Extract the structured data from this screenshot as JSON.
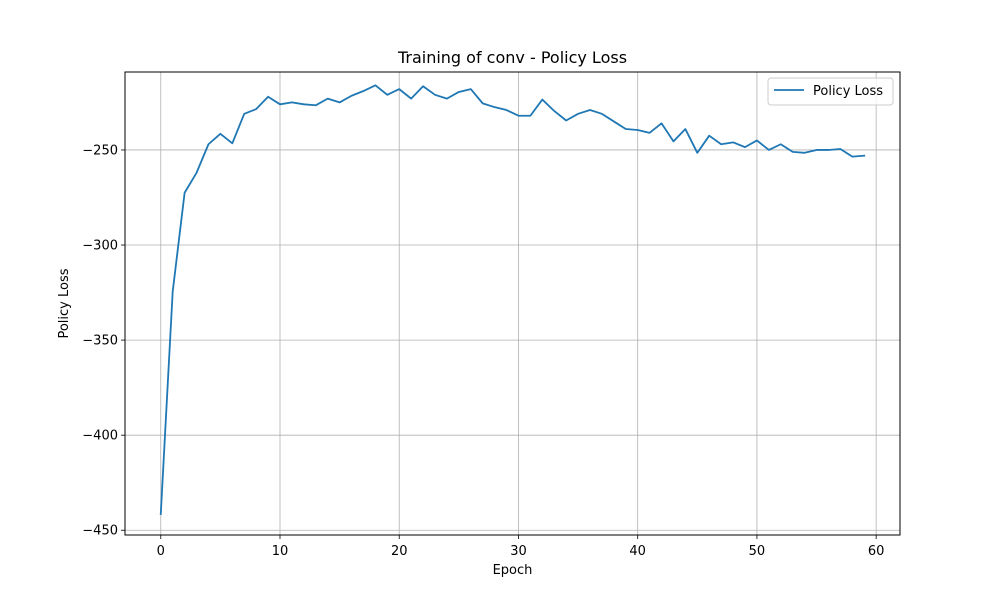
{
  "chart_data": {
    "type": "line",
    "title": "Training of conv - Policy Loss",
    "xlabel": "Epoch",
    "ylabel": "Policy Loss",
    "xlim": [
      -3,
      62
    ],
    "ylim": [
      -452.5,
      -209
    ],
    "xticks": [
      0,
      10,
      20,
      30,
      40,
      50,
      60
    ],
    "xtick_labels": [
      "0",
      "10",
      "20",
      "30",
      "40",
      "50",
      "60"
    ],
    "yticks": [
      -450,
      -400,
      -350,
      -300,
      -250
    ],
    "ytick_labels": [
      "−450",
      "−400",
      "−350",
      "−300",
      "−250"
    ],
    "grid": true,
    "legend_position": "top-right",
    "series": [
      {
        "name": "Policy Loss",
        "color": "#1f77b4",
        "x": [
          0,
          1,
          2,
          3,
          4,
          5,
          6,
          7,
          8,
          9,
          10,
          11,
          12,
          13,
          14,
          15,
          16,
          17,
          18,
          19,
          20,
          21,
          22,
          23,
          24,
          25,
          26,
          27,
          28,
          29,
          30,
          31,
          32,
          33,
          34,
          35,
          36,
          37,
          38,
          39,
          40,
          41,
          42,
          43,
          44,
          45,
          46,
          47,
          48,
          49,
          50,
          51,
          52,
          53,
          54,
          55,
          56,
          57,
          58,
          59
        ],
        "y": [
          -441.5,
          -324.5,
          -272.5,
          -262,
          -247,
          -241.5,
          -246.5,
          -231,
          -228.5,
          -222,
          -226,
          -225,
          -226,
          -226.5,
          -223,
          -225,
          -221.5,
          -219,
          -216,
          -221,
          -218,
          -223,
          -216.5,
          -221,
          -223,
          -219.5,
          -218,
          -225.5,
          -227.5,
          -229,
          -232,
          -232,
          -223.5,
          -229.5,
          -234.5,
          -231,
          -229,
          -231,
          -235,
          -239,
          -239.5,
          -241,
          -236,
          -245.5,
          -239,
          -251.5,
          -242.5,
          -247,
          -246,
          -248.5,
          -245,
          -250,
          -247,
          -251,
          -251.5,
          -250,
          -250,
          -249.5,
          -253.5,
          -253
        ]
      }
    ]
  }
}
